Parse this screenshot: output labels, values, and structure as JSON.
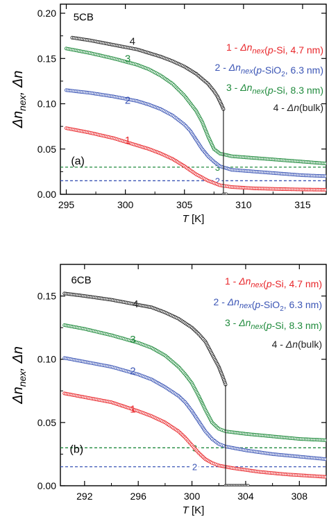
{
  "colors": {
    "s1": "#e8262a",
    "s2": "#3b55b5",
    "s3": "#1f8a3c",
    "s4": "#222222",
    "axis": "#000000"
  },
  "chart_data": [
    {
      "type": "scatter",
      "panel_label": "(a)",
      "material": "5CB",
      "xlabel_italic": "T",
      "xlabel_unit": "[K]",
      "ylabel": "Δn_nex, Δn",
      "xlim": [
        294.5,
        317
      ],
      "ylim": [
        0,
        0.21
      ],
      "xticks": [
        295,
        300,
        305,
        310,
        315
      ],
      "yticks": [
        0.0,
        0.05,
        0.1,
        0.15,
        0.2
      ],
      "ytick_labels": [
        "0.00",
        "0.05",
        "0.10",
        "0.15",
        "0.20"
      ],
      "transition_T": 308.3,
      "legend": [
        {
          "id": "1",
          "prefix": "1 - ",
          "sym": "Δn",
          "sub": "nex",
          "paren": "(p-Si, 4.7 nm)"
        },
        {
          "id": "2",
          "prefix": "2 - ",
          "sym": "Δn",
          "sub": "nex",
          "paren": "(p-SiO2, 6.3 nm)"
        },
        {
          "id": "3",
          "prefix": "3 - ",
          "sym": "Δn",
          "sub": "nex",
          "paren": "(p-Si, 8.3 nm)"
        },
        {
          "id": "4",
          "prefix": "4 - ",
          "sym": "Δn",
          "sub": "",
          "paren": "(bulk)"
        }
      ],
      "series": [
        {
          "id": "1",
          "color_key": "s1",
          "label_at": [
            300.2,
            0.056
          ],
          "points": [
            [
              295,
              0.073
            ],
            [
              297,
              0.068
            ],
            [
              299,
              0.062
            ],
            [
              301,
              0.054
            ],
            [
              302,
              0.05
            ],
            [
              303,
              0.045
            ],
            [
              304,
              0.039
            ],
            [
              305,
              0.031
            ],
            [
              306,
              0.022
            ],
            [
              307,
              0.015
            ],
            [
              308,
              0.01
            ],
            [
              309,
              0.008
            ],
            [
              311,
              0.0065
            ],
            [
              313,
              0.0058
            ],
            [
              315,
              0.0053
            ],
            [
              317,
              0.005
            ]
          ]
        },
        {
          "id": "2",
          "color_key": "s2",
          "label_at": [
            300.2,
            0.1
          ],
          "points": [
            [
              295,
              0.115
            ],
            [
              297,
              0.112
            ],
            [
              299,
              0.108
            ],
            [
              301,
              0.103
            ],
            [
              302,
              0.099
            ],
            [
              303,
              0.094
            ],
            [
              304,
              0.087
            ],
            [
              305,
              0.077
            ],
            [
              305.5,
              0.07
            ],
            [
              306,
              0.06
            ],
            [
              306.5,
              0.05
            ],
            [
              307,
              0.042
            ],
            [
              307.5,
              0.036
            ],
            [
              308,
              0.031
            ],
            [
              309,
              0.027
            ],
            [
              311,
              0.025
            ],
            [
              313,
              0.023
            ],
            [
              315,
              0.021
            ],
            [
              317,
              0.02
            ]
          ]
        },
        {
          "id": "3",
          "color_key": "s3",
          "label_at": [
            300.2,
            0.146
          ],
          "points": [
            [
              295,
              0.161
            ],
            [
              297,
              0.156
            ],
            [
              299,
              0.15
            ],
            [
              301,
              0.143
            ],
            [
              302,
              0.138
            ],
            [
              303,
              0.131
            ],
            [
              304,
              0.122
            ],
            [
              305,
              0.109
            ],
            [
              306,
              0.092
            ],
            [
              306.5,
              0.08
            ],
            [
              307,
              0.064
            ],
            [
              307.5,
              0.05
            ],
            [
              308,
              0.045
            ],
            [
              309,
              0.042
            ],
            [
              311,
              0.04
            ],
            [
              313,
              0.038
            ],
            [
              315,
              0.036
            ],
            [
              317,
              0.034
            ]
          ]
        },
        {
          "id": "4",
          "color_key": "s4",
          "label_at": [
            300.6,
            0.165
          ],
          "points": [
            [
              295.5,
              0.173
            ],
            [
              297,
              0.17
            ],
            [
              299,
              0.165
            ],
            [
              301,
              0.16
            ],
            [
              302,
              0.156
            ],
            [
              303,
              0.152
            ],
            [
              304,
              0.147
            ],
            [
              305,
              0.141
            ],
            [
              306,
              0.133
            ],
            [
              307,
              0.122
            ],
            [
              307.5,
              0.114
            ],
            [
              307.8,
              0.108
            ],
            [
              308.1,
              0.1
            ],
            [
              308.3,
              0.094
            ]
          ],
          "tail": [
            [
              308.3,
              0.0
            ],
            [
              308.6,
              0.0
            ]
          ]
        }
      ],
      "reference_lines": [
        {
          "id": "3",
          "y": 0.03,
          "color_key": "s3",
          "label_x": 307.8
        },
        {
          "id": "2",
          "y": 0.015,
          "color_key": "s2",
          "label_x": 307.8
        }
      ],
      "panel_label_pos": [
        295.4,
        0.033
      ],
      "material_pos": [
        295.6,
        0.192
      ]
    },
    {
      "type": "scatter",
      "panel_label": "(b)",
      "material": "6CB",
      "xlabel_italic": "T",
      "xlabel_unit": "[K]",
      "ylabel": "Δn_nex, Δn",
      "xlim": [
        290.2,
        310
      ],
      "ylim": [
        0,
        0.175
      ],
      "xticks": [
        292,
        296,
        300,
        304,
        308
      ],
      "yticks": [
        0.0,
        0.05,
        0.1,
        0.15
      ],
      "ytick_labels": [
        "0.00",
        "0.05",
        "0.10",
        "0.15"
      ],
      "transition_T": 302.5,
      "legend": [
        {
          "id": "1",
          "prefix": "1 - ",
          "sym": "Δn",
          "sub": "nex",
          "paren": "(p-Si, 4.7 nm)"
        },
        {
          "id": "2",
          "prefix": "2 - ",
          "sym": "Δn",
          "sub": "nex",
          "paren": "(p-SiO2, 6.3 nm)"
        },
        {
          "id": "3",
          "prefix": "3 - ",
          "sym": "Δn",
          "sub": "nex",
          "paren": "(p-Si, 8.3 nm)"
        },
        {
          "id": "4",
          "prefix": "4 - ",
          "sym": "Δn",
          "sub": "",
          "paren": "(bulk)"
        }
      ],
      "series": [
        {
          "id": "1",
          "color_key": "s1",
          "label_at": [
            295.6,
            0.058
          ],
          "points": [
            [
              290.5,
              0.073
            ],
            [
              292,
              0.07
            ],
            [
              294,
              0.066
            ],
            [
              296,
              0.059
            ],
            [
              297,
              0.055
            ],
            [
              298,
              0.05
            ],
            [
              299,
              0.043
            ],
            [
              299.5,
              0.038
            ],
            [
              300,
              0.032
            ],
            [
              300.5,
              0.026
            ],
            [
              301,
              0.021
            ],
            [
              301.5,
              0.018
            ],
            [
              302,
              0.016
            ],
            [
              303,
              0.014
            ],
            [
              305,
              0.011
            ],
            [
              307,
              0.009
            ],
            [
              310,
              0.007
            ]
          ]
        },
        {
          "id": "2",
          "color_key": "s2",
          "label_at": [
            295.6,
            0.088
          ],
          "points": [
            [
              290.5,
              0.101
            ],
            [
              292,
              0.098
            ],
            [
              294,
              0.094
            ],
            [
              296,
              0.088
            ],
            [
              297,
              0.084
            ],
            [
              298,
              0.078
            ],
            [
              299,
              0.071
            ],
            [
              299.5,
              0.066
            ],
            [
              300,
              0.059
            ],
            [
              300.5,
              0.051
            ],
            [
              301,
              0.043
            ],
            [
              301.5,
              0.037
            ],
            [
              302,
              0.033
            ],
            [
              302.5,
              0.031
            ],
            [
              304,
              0.028
            ],
            [
              306,
              0.025
            ],
            [
              308,
              0.023
            ],
            [
              310,
              0.021
            ]
          ]
        },
        {
          "id": "3",
          "color_key": "s3",
          "label_at": [
            295.6,
            0.113
          ],
          "points": [
            [
              290.5,
              0.127
            ],
            [
              292,
              0.124
            ],
            [
              294,
              0.119
            ],
            [
              296,
              0.113
            ],
            [
              297,
              0.109
            ],
            [
              298,
              0.103
            ],
            [
              299,
              0.094
            ],
            [
              299.5,
              0.088
            ],
            [
              300,
              0.081
            ],
            [
              300.5,
              0.071
            ],
            [
              301,
              0.06
            ],
            [
              301.5,
              0.05
            ],
            [
              302,
              0.045
            ],
            [
              302.5,
              0.043
            ],
            [
              304,
              0.041
            ],
            [
              306,
              0.039
            ],
            [
              308,
              0.037
            ],
            [
              310,
              0.036
            ]
          ]
        },
        {
          "id": "4",
          "color_key": "s4",
          "label_at": [
            295.8,
            0.141
          ],
          "points": [
            [
              290.5,
              0.152
            ],
            [
              292,
              0.15
            ],
            [
              294,
              0.147
            ],
            [
              296,
              0.143
            ],
            [
              297,
              0.141
            ],
            [
              298,
              0.137
            ],
            [
              299,
              0.132
            ],
            [
              300,
              0.125
            ],
            [
              300.5,
              0.12
            ],
            [
              301,
              0.114
            ],
            [
              301.5,
              0.104
            ],
            [
              302,
              0.094
            ],
            [
              302.3,
              0.086
            ],
            [
              302.5,
              0.08
            ]
          ],
          "tail": [
            [
              302.5,
              0.0
            ],
            [
              304.2,
              0.0
            ]
          ]
        }
      ],
      "reference_lines": [
        {
          "id": "3",
          "y": 0.03,
          "color_key": "s3",
          "label_x": 300.2
        },
        {
          "id": "2",
          "y": 0.015,
          "color_key": "s2",
          "label_x": 300.2
        }
      ],
      "panel_label_pos": [
        290.9,
        0.026
      ],
      "material_pos": [
        291.0,
        0.16
      ]
    }
  ]
}
